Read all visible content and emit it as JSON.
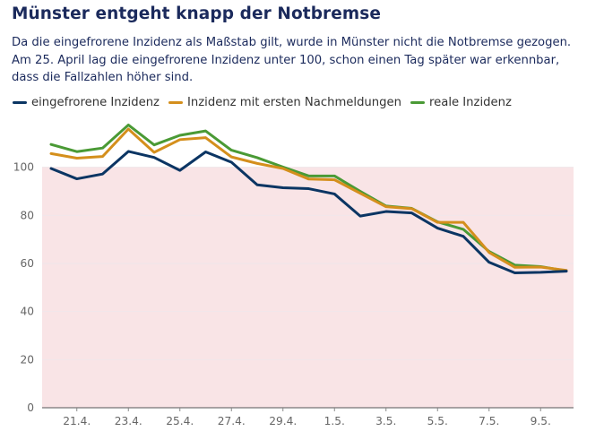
{
  "chart_data": {
    "type": "line",
    "title": "Münster entgeht knapp der Notbremse",
    "subtitle": "Da die eingefrorene Inzidenz als Maßstab gilt, wurde in Münster nicht die Notbremse gezogen. Am 25. April lag die eingefrorene Inzidenz unter 100, schon einen Tag später war erkennbar, dass die Fallzahlen höher sind.",
    "x": [
      "20.4.",
      "21.4.",
      "22.4.",
      "23.4.",
      "24.4.",
      "25.4.",
      "26.4.",
      "27.4.",
      "28.4.",
      "29.4.",
      "30.4.",
      "1.5.",
      "2.5.",
      "3.5.",
      "4.5.",
      "5.5.",
      "6.5.",
      "7.5.",
      "8.5.",
      "9.5.",
      "10.5."
    ],
    "x_tick_labels": [
      "21.4.",
      "23.4.",
      "25.4.",
      "27.4.",
      "29.4.",
      "1.5.",
      "3.5.",
      "5.5.",
      "7.5.",
      "9.5."
    ],
    "series": [
      {
        "name": "eingefrorene Inzidenz",
        "color": "#0b3563",
        "values": [
          99.5,
          95.2,
          97.2,
          106.6,
          104.1,
          98.7,
          106.4,
          102.1,
          92.7,
          91.5,
          91.1,
          88.9,
          79.7,
          81.6,
          81.0,
          74.7,
          71.3,
          60.5,
          56.1,
          56.3,
          56.8
        ]
      },
      {
        "name": "Inzidenz mit ersten Nachmeldungen",
        "color": "#d48f1c",
        "values": [
          105.7,
          103.8,
          104.5,
          115.9,
          106.2,
          111.5,
          112.3,
          104.3,
          101.6,
          99.5,
          95.1,
          94.8,
          89.2,
          83.6,
          82.8,
          77.1,
          77.1,
          64.6,
          58.4,
          58.5,
          57.1
        ]
      },
      {
        "name": "reale Inzidenz",
        "color": "#4a9a35",
        "values": [
          109.5,
          106.5,
          108.0,
          117.6,
          109.3,
          113.3,
          115.1,
          107.1,
          104.0,
          100.1,
          96.4,
          96.4,
          90.0,
          83.9,
          82.9,
          77.3,
          74.2,
          65.0,
          59.3,
          58.7,
          56.9
        ]
      }
    ],
    "ylim": [
      0,
      120
    ],
    "yticks": [
      0,
      20,
      40,
      60,
      80,
      100
    ],
    "threshold_band": {
      "from": 0,
      "to": 100,
      "color": "#f9e4e6"
    },
    "grid": true,
    "legend_position": "top-left"
  }
}
